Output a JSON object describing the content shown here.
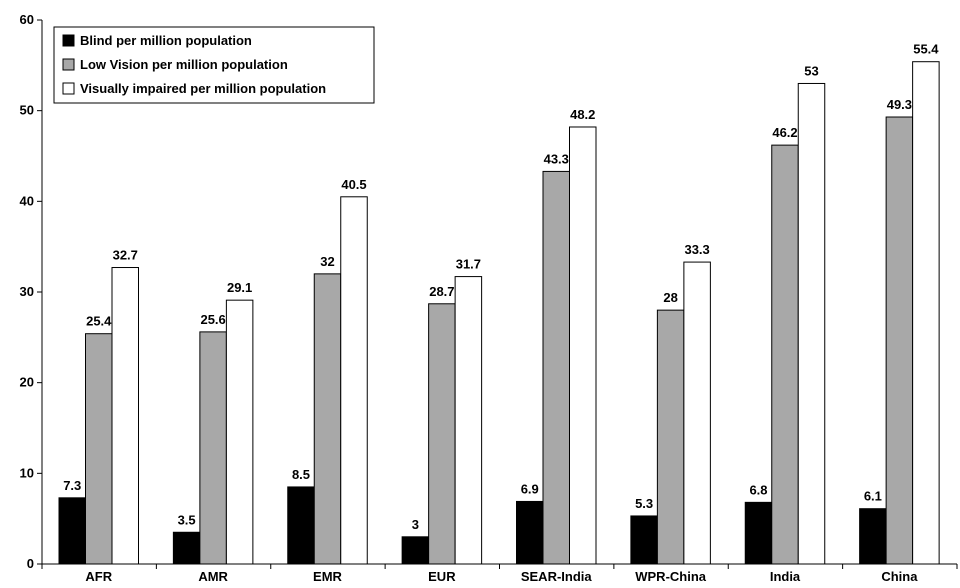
{
  "chart_data": {
    "type": "bar",
    "categories": [
      "AFR",
      "AMR",
      "EMR",
      "EUR",
      "SEAR-India",
      "WPR-China",
      "India",
      "China"
    ],
    "series": [
      {
        "name": "Blind per million population",
        "color": "#000000",
        "values": [
          7.3,
          3.5,
          8.5,
          3,
          6.9,
          5.3,
          6.8,
          6.1
        ]
      },
      {
        "name": "Low Vision per million population",
        "color": "#a8a8a8",
        "values": [
          25.4,
          25.6,
          32,
          28.7,
          43.3,
          28,
          46.2,
          49.3
        ]
      },
      {
        "name": "Visually impaired per million population",
        "color": "#ffffff",
        "values": [
          32.7,
          29.1,
          40.5,
          31.7,
          48.2,
          33.3,
          53,
          55.4
        ]
      }
    ],
    "ylim": [
      0,
      60
    ],
    "yticks": [
      0,
      10,
      20,
      30,
      40,
      50,
      60
    ],
    "legend_position": "top-left",
    "grid": false
  }
}
